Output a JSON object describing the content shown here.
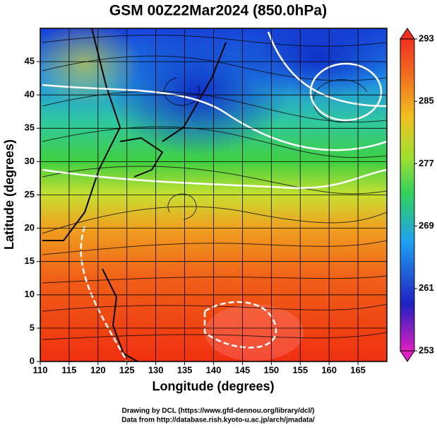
{
  "chart_data": {
    "type": "map",
    "title": "GSM 00Z22Mar2024 (850.0hPa)",
    "x_label": "Longitude (degrees)",
    "y_label": "Latitude  (degrees)",
    "xlim": [
      110,
      170
    ],
    "ylim": [
      0,
      50
    ],
    "xticks": [
      110,
      115,
      120,
      125,
      130,
      135,
      140,
      145,
      150,
      155,
      160,
      165
    ],
    "yticks": [
      0,
      5,
      10,
      15,
      20,
      25,
      30,
      35,
      40,
      45
    ],
    "grid": true,
    "colorbar": {
      "lim": [
        253,
        293
      ],
      "ticks": [
        253,
        261,
        269,
        277,
        285,
        293
      ]
    },
    "credits": [
      "Drawing by DCL (https://www.gfd-dennou.org/library/dcl/)",
      "Data from http://database.rish.kyoto-u.ac.jp/arch/jmadata/"
    ]
  }
}
